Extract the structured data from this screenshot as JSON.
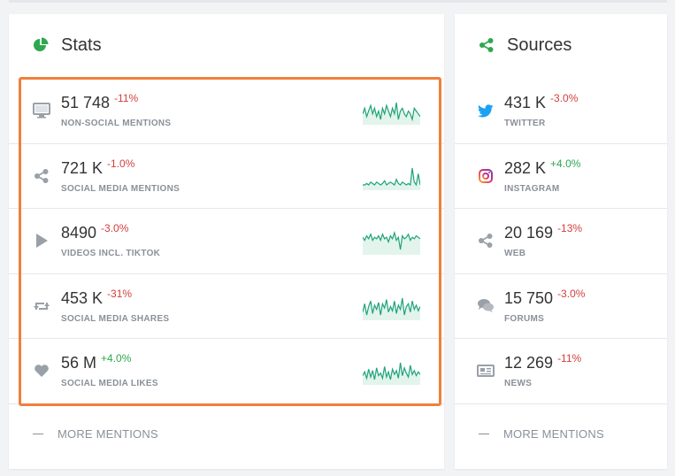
{
  "stats": {
    "title": "Stats",
    "title_icon": "pie-chart-icon",
    "accent": "#2ea84f",
    "rows": [
      {
        "icon": "monitor-icon",
        "value": "51 748",
        "change": "-11%",
        "trend": "neg",
        "label": "NON-SOCIAL MENTIONS",
        "spark": [
          14,
          16,
          13,
          15,
          17,
          14,
          16,
          13,
          15,
          12,
          16,
          14,
          17,
          15,
          13,
          16,
          14,
          18,
          12,
          15,
          16,
          14,
          13,
          15,
          14,
          12,
          16,
          15,
          14,
          13
        ]
      },
      {
        "icon": "share-icon",
        "value": "721 K",
        "change": "-1.0%",
        "trend": "neg",
        "label": "SOCIAL MEDIA MENTIONS",
        "spark": [
          12,
          12,
          13,
          12,
          14,
          13,
          12,
          14,
          13,
          12,
          13,
          15,
          12,
          13,
          14,
          13,
          12,
          16,
          13,
          12,
          14,
          13,
          12,
          13,
          12,
          24,
          14,
          12,
          20,
          12
        ]
      },
      {
        "icon": "play-icon",
        "value": "8490",
        "change": "-3.0%",
        "trend": "neg",
        "label": "VIDEOS INCL. TIKTOK",
        "spark": [
          16,
          14,
          17,
          15,
          18,
          14,
          16,
          15,
          17,
          14,
          18,
          15,
          16,
          13,
          17,
          15,
          19,
          14,
          16,
          8,
          17,
          15,
          16,
          18,
          14,
          16,
          15,
          17,
          16,
          15
        ]
      },
      {
        "icon": "retweet-icon",
        "value": "453 K",
        "change": "-31%",
        "trend": "neg",
        "label": "SOCIAL MEDIA SHARES",
        "spark": [
          10,
          16,
          8,
          14,
          18,
          9,
          15,
          12,
          17,
          8,
          16,
          13,
          19,
          10,
          14,
          11,
          18,
          9,
          15,
          12,
          20,
          8,
          14,
          16,
          10,
          18,
          12,
          15,
          11,
          14
        ]
      },
      {
        "icon": "heart-icon",
        "value": "56 M",
        "change": "+4.0%",
        "trend": "pos",
        "label": "SOCIAL MEDIA LIKES",
        "spark": [
          12,
          15,
          10,
          17,
          11,
          16,
          9,
          18,
          12,
          14,
          10,
          19,
          11,
          15,
          9,
          17,
          13,
          16,
          10,
          22,
          12,
          18,
          14,
          11,
          20,
          13,
          16,
          12,
          15,
          13
        ]
      }
    ],
    "more_label": "MORE MENTIONS"
  },
  "sources": {
    "title": "Sources",
    "title_icon": "share-icon",
    "accent": "#2ea84f",
    "rows": [
      {
        "icon": "twitter-icon",
        "value": "431 K",
        "change": "-3.0%",
        "trend": "neg",
        "label": "TWITTER"
      },
      {
        "icon": "instagram-icon",
        "value": "282 K",
        "change": "+4.0%",
        "trend": "pos",
        "label": "INSTAGRAM"
      },
      {
        "icon": "share-icon",
        "value": "20 169",
        "change": "-13%",
        "trend": "neg",
        "label": "WEB"
      },
      {
        "icon": "forum-icon",
        "value": "15 750",
        "change": "-3.0%",
        "trend": "neg",
        "label": "FORUMS"
      },
      {
        "icon": "news-icon",
        "value": "12 269",
        "change": "-11%",
        "trend": "neg",
        "label": "NEWS"
      }
    ],
    "more_label": "MORE MENTIONS"
  },
  "colors": {
    "highlight": "#f07f3c",
    "spark_line": "#1fa37a",
    "spark_fill": "#e3f4ec",
    "icon_gray": "#9aa0a8",
    "twitter": "#1da1f2"
  }
}
